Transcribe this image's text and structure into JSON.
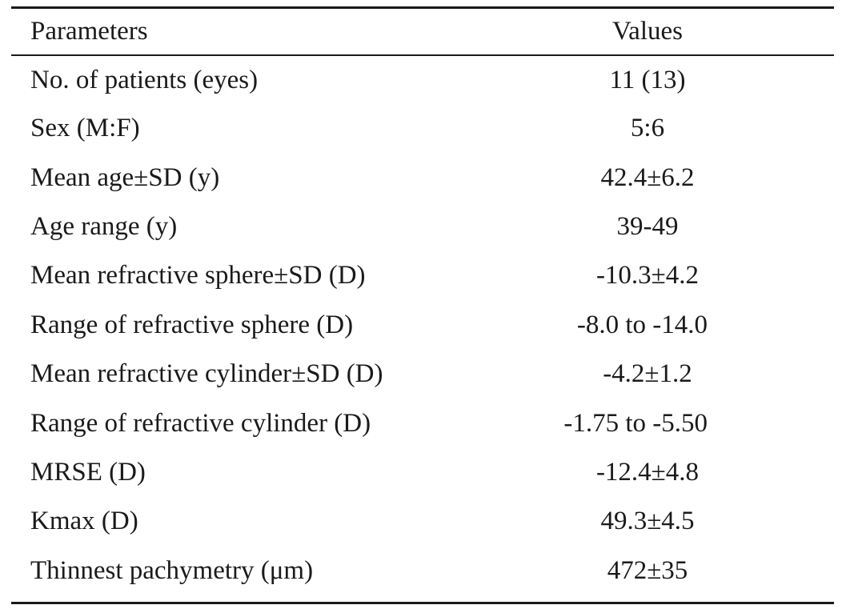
{
  "table": {
    "headers": {
      "param": "Parameters",
      "value": "Values"
    },
    "rows": [
      {
        "param": "No. of patients (eyes)",
        "value": "11 (13)"
      },
      {
        "param": "Sex (M:F)",
        "value": "5:6"
      },
      {
        "param": "Mean age±SD (y)",
        "value": "42.4±6.2"
      },
      {
        "param": "Age range (y)",
        "value": "39-49"
      },
      {
        "param": "Mean refractive sphere±SD (D)",
        "value": "-10.3±4.2"
      },
      {
        "param": "Range of refractive sphere (D)",
        "value": "-8.0 to -14.0"
      },
      {
        "param": "Mean refractive cylinder±SD (D)",
        "value": "-4.2±1.2"
      },
      {
        "param": "Range of refractive cylinder (D)",
        "value": "-1.75 to -5.50"
      },
      {
        "param": "MRSE (D)",
        "value": "-12.4±4.8"
      },
      {
        "param": "Kmax (D)",
        "value": "49.3±4.5"
      },
      {
        "param": "Thinnest pachymetry (μm)",
        "value": "472±35"
      }
    ]
  }
}
